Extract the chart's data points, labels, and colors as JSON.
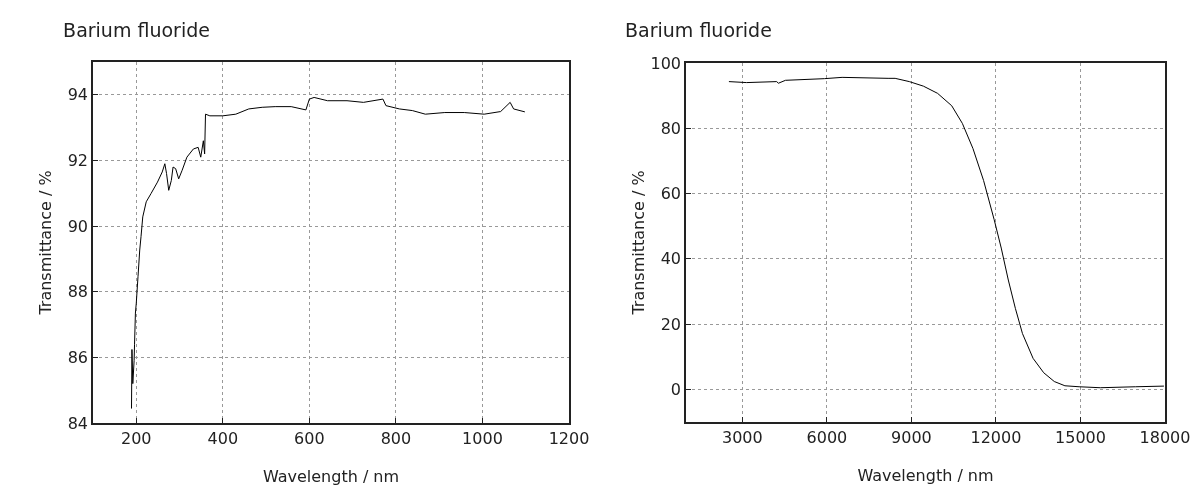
{
  "chart_data": [
    {
      "type": "line",
      "title": "Barium fluoride",
      "xlabel": "Wavelength / nm",
      "ylabel": "Transmittance / %",
      "xlim": [
        100,
        1200
      ],
      "xticks": [
        200,
        400,
        600,
        800,
        1000,
        1200
      ],
      "ylim": [
        84,
        95
      ],
      "yticks": [
        84,
        86,
        88,
        90,
        92,
        94
      ],
      "grid": true,
      "marker": "none",
      "line_style": "solid",
      "series": [
        {
          "color": "#000000",
          "x": [
            189,
            190,
            192,
            195,
            196,
            198,
            200,
            204,
            208,
            211,
            215,
            223,
            234,
            249,
            260,
            266,
            270,
            275,
            281,
            285,
            291,
            298,
            306,
            317,
            332,
            343,
            349,
            355,
            358,
            360,
            370,
            400,
            430,
            460,
            491,
            521,
            558,
            592,
            600,
            611,
            642,
            687,
            725,
            770,
            777,
            808,
            838,
            868,
            913,
            958,
            1004,
            1042,
            1064,
            1072,
            1098
          ],
          "values": [
            84.44,
            86.24,
            85.2,
            85.9,
            86.4,
            87.35,
            87.65,
            88.46,
            89.27,
            89.68,
            90.28,
            90.74,
            90.99,
            91.34,
            91.65,
            91.9,
            91.6,
            91.09,
            91.39,
            91.8,
            91.75,
            91.44,
            91.7,
            92.1,
            92.35,
            92.4,
            92.1,
            92.6,
            92.2,
            93.41,
            93.36,
            93.36,
            93.41,
            93.57,
            93.62,
            93.64,
            93.64,
            93.54,
            93.87,
            93.92,
            93.82,
            93.82,
            93.77,
            93.87,
            93.67,
            93.57,
            93.52,
            93.41,
            93.46,
            93.46,
            93.41,
            93.49,
            93.77,
            93.57,
            93.48
          ]
        }
      ]
    },
    {
      "type": "line",
      "title": "Barium fluoride",
      "xlabel": "Wavelength / nm",
      "ylabel": "Transmittance / %",
      "xlim": [
        1000,
        18000
      ],
      "xticks": [
        3000,
        6000,
        9000,
        12000,
        15000,
        18000
      ],
      "ylim": [
        -10,
        100
      ],
      "yticks": [
        0,
        20,
        40,
        60,
        80,
        100
      ],
      "grid": true,
      "marker": "none",
      "line_style": "solid",
      "series": [
        {
          "color": "#000000",
          "x": [
            2523,
            3150,
            4218,
            4280,
            4531,
            5912,
            6540,
            8172,
            8422,
            8925,
            9427,
            9929,
            10431,
            10808,
            11184,
            11561,
            11937,
            12188,
            12439,
            12690,
            12941,
            13318,
            13695,
            14071,
            14448,
            14950,
            15703,
            16958,
            17962
          ],
          "values": [
            94.3,
            94.0,
            94.3,
            93.8,
            94.7,
            95.2,
            95.6,
            95.3,
            95.3,
            94.3,
            92.9,
            90.7,
            86.9,
            81.5,
            73.8,
            64.0,
            52.0,
            43.3,
            33.5,
            24.8,
            17.1,
            9.5,
            5.1,
            2.4,
            1.1,
            0.8,
            0.5,
            0.8,
            1.0
          ]
        }
      ]
    }
  ]
}
